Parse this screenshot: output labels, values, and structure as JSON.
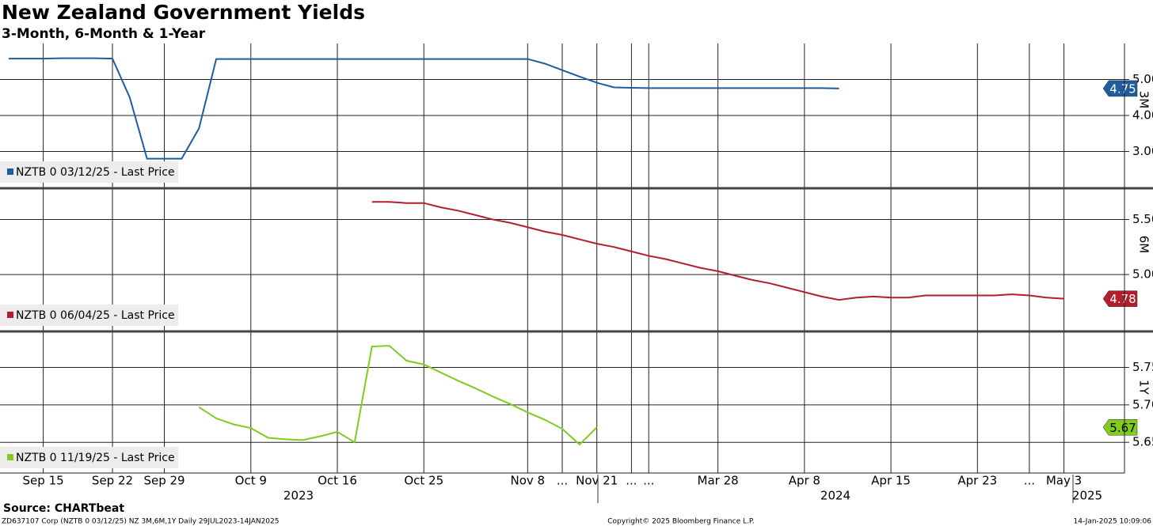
{
  "title": "New Zealand Government Yields",
  "subtitle": "3-Month, 6-Month & 1-Year",
  "source": "Source: CHARTbeat",
  "footer": {
    "left": "ZD637107 Corp (NZTB 0 03/12/25) NZ 3M,6M,1Y  Daily 29JUL2023-14JAN2025",
    "center": "Copyright© 2025 Bloomberg Finance L.P.",
    "right": "14-Jan-2025 10:09:06"
  },
  "x_axis": {
    "categories": [
      null,
      null,
      "Sep 15",
      null,
      null,
      null,
      "Sep 22",
      null,
      null,
      "Sep 29",
      null,
      null,
      null,
      null,
      "Oct 9",
      null,
      null,
      null,
      null,
      "Oct 16",
      null,
      null,
      null,
      null,
      "Oct 25",
      null,
      null,
      null,
      null,
      null,
      "Nov 8",
      null,
      "...",
      null,
      "Nov 21",
      null,
      "...",
      "...",
      null,
      null,
      null,
      "Mar 28",
      null,
      null,
      null,
      null,
      "Apr 8",
      null,
      null,
      null,
      null,
      "Apr 15",
      null,
      null,
      null,
      null,
      "Apr 23",
      null,
      null,
      "...",
      null,
      "May 3",
      null,
      null,
      null
    ],
    "years": [
      "2023",
      "2024",
      "2025"
    ]
  },
  "chart_data": [
    {
      "type": "line",
      "y_label": "3M",
      "grid": true,
      "ylim": [
        2.0,
        6.0
      ],
      "yticks": [
        {
          "value": 3,
          "label": "3.00"
        },
        {
          "value": 4,
          "label": "4.00"
        },
        {
          "value": 5,
          "label": "5.00"
        }
      ],
      "series": [
        {
          "name": "NZTB 0 03/12/25 - Last Price",
          "color": "#1f5c9e",
          "values": [
            5.58,
            5.58,
            5.58,
            5.59,
            5.59,
            5.59,
            5.58,
            4.5,
            2.8,
            2.8,
            2.8,
            3.64,
            5.57,
            5.57,
            5.57,
            5.57,
            5.57,
            5.57,
            5.57,
            5.57,
            5.57,
            5.57,
            5.57,
            5.57,
            5.57,
            5.57,
            5.57,
            5.57,
            5.57,
            5.57,
            5.57,
            5.44,
            5.26,
            5.08,
            4.91,
            4.78,
            4.77,
            4.76,
            4.76,
            4.76,
            4.76,
            4.76,
            4.76,
            4.76,
            4.76,
            4.76,
            4.76,
            4.76,
            4.75,
            null,
            null,
            null,
            null,
            null,
            null,
            null,
            null,
            null,
            null,
            null,
            null,
            null,
            null,
            null,
            null
          ]
        }
      ]
    },
    {
      "type": "line",
      "y_label": "6M",
      "grid": true,
      "ylim": [
        4.49,
        5.77
      ],
      "yticks": [
        {
          "value": 5,
          "label": "5.00"
        },
        {
          "value": 5.5,
          "label": "5.50"
        }
      ],
      "series": [
        {
          "name": "NZTB 0 06/04/25 - Last Price",
          "color": "#b31e2f",
          "values": [
            null,
            null,
            null,
            null,
            null,
            null,
            null,
            null,
            null,
            null,
            null,
            null,
            null,
            null,
            null,
            null,
            null,
            null,
            null,
            null,
            null,
            5.66,
            5.66,
            5.65,
            5.65,
            5.61,
            5.58,
            5.54,
            5.5,
            5.47,
            5.43,
            5.39,
            5.36,
            5.32,
            5.28,
            5.25,
            5.21,
            5.17,
            5.14,
            5.1,
            5.06,
            5.03,
            4.99,
            4.95,
            4.92,
            4.88,
            4.84,
            4.8,
            4.77,
            4.79,
            4.8,
            4.79,
            4.79,
            4.81,
            4.81,
            4.81,
            4.81,
            4.81,
            4.82,
            4.81,
            4.79,
            4.78,
            null,
            null,
            null
          ]
        }
      ]
    },
    {
      "type": "line",
      "y_label": "1Y",
      "grid": true,
      "ylim": [
        5.609,
        5.796
      ],
      "yticks": [
        5.65,
        {
          "value": 5.7,
          "label": "5.70"
        },
        5.75
      ],
      "series": [
        {
          "name": "NZTB 0 11/19/25 - Last Price",
          "color": "#7dcc1e",
          "values": [
            null,
            null,
            null,
            null,
            null,
            null,
            null,
            null,
            null,
            null,
            null,
            5.697,
            5.682,
            5.674,
            5.669,
            5.656,
            5.654,
            5.653,
            5.658,
            5.664,
            5.65,
            5.778,
            5.779,
            5.759,
            5.754,
            5.743,
            5.732,
            5.722,
            5.711,
            5.701,
            5.69,
            5.68,
            5.668,
            5.647,
            5.67,
            null,
            null,
            null,
            null,
            null,
            null,
            null,
            null,
            null,
            null,
            null,
            null,
            null,
            null,
            null,
            null,
            null,
            null,
            null,
            null,
            null,
            null,
            null,
            null,
            null,
            null,
            null,
            null,
            null,
            null
          ]
        }
      ]
    }
  ]
}
